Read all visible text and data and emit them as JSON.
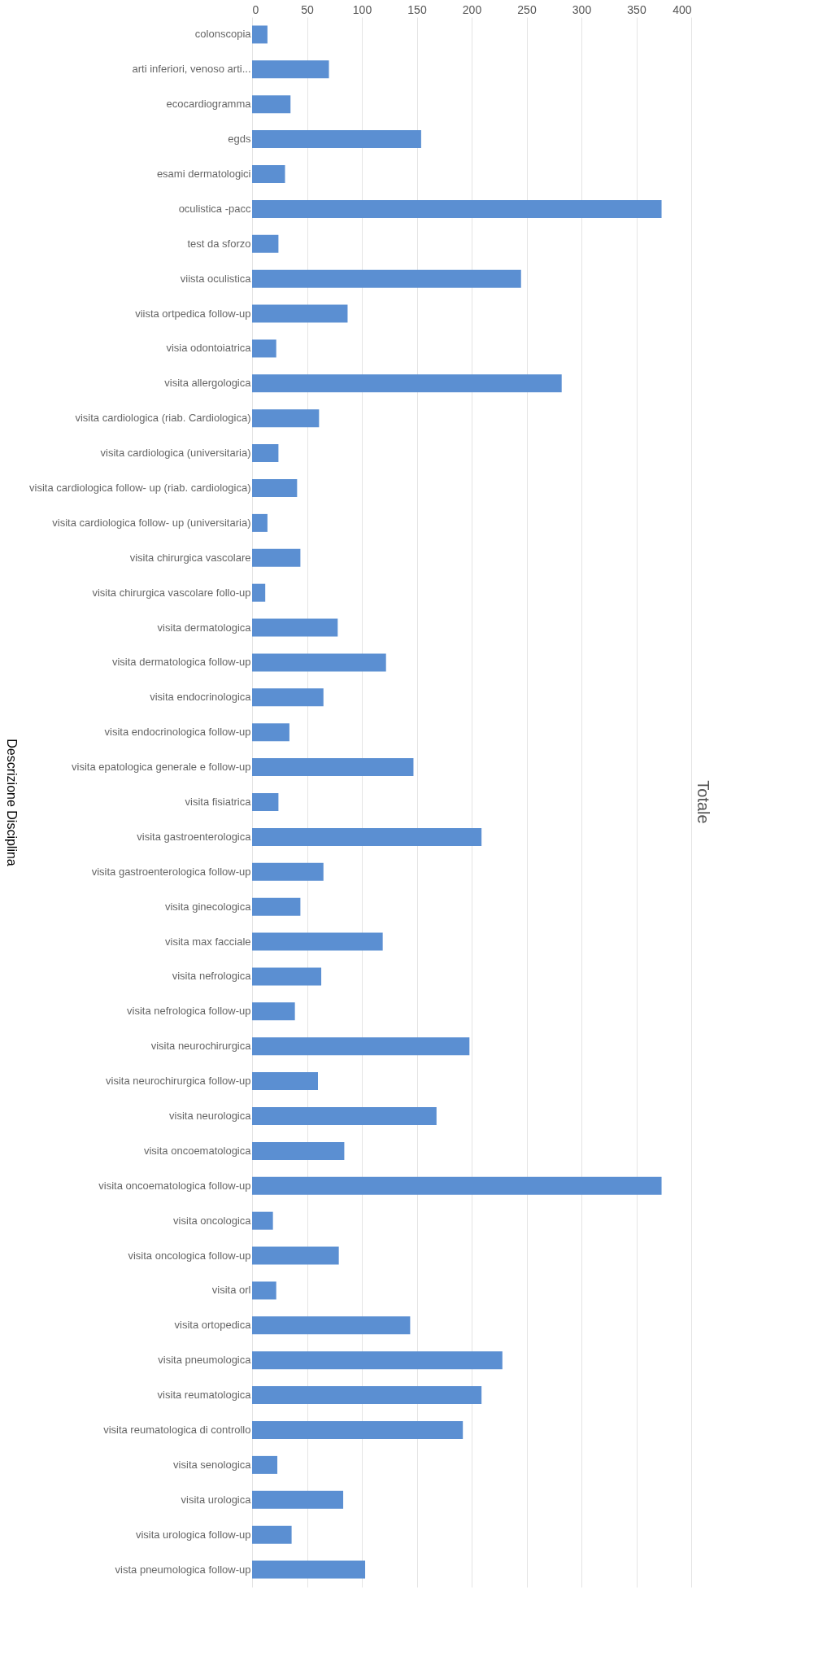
{
  "chart_data": {
    "type": "bar",
    "orientation": "horizontal",
    "title": "Totale",
    "ylabel": "Descrizione Disciplina",
    "categories": [
      "colonscopia",
      "arti inferiori, venoso arti...",
      "ecocardiogramma",
      "egds",
      "esami dermatologici",
      "oculistica -pacc",
      "test da sforzo",
      "viista oculistica",
      "viista ortpedica follow-up",
      "visia odontoiatrica",
      "visita allergologica",
      "visita cardiologica (riab. Cardiologica)",
      "visita cardiologica (universitaria)",
      "visita cardiologica follow- up (riab. cardiologica)",
      "visita cardiologica follow- up (universitaria)",
      "visita chirurgica vascolare",
      "visita chirurgica vascolare follo-up",
      "visita dermatologica",
      "visita dermatologica follow-up",
      "visita endocrinologica",
      "visita endocrinologica follow-up",
      "visita epatologica generale e follow-up",
      "visita fisiatrica",
      "visita gastroenterologica",
      "visita gastroenterologica follow-up",
      "visita ginecologica",
      "visita max facciale",
      "visita nefrologica",
      "visita nefrologica follow-up",
      "visita neurochirurgica",
      "visita neurochirurgica follow-up",
      "visita neurologica",
      "visita oncoematologica",
      "visita oncoematologica follow-up",
      "visita oncologica",
      "visita oncologica follow-up",
      "visita orl",
      "visita ortopedica",
      "visita pneumologica",
      "visita reumatologica",
      "visita reumatologica di controllo",
      "visita senologica",
      "visita urologica",
      "visita urologica follow-up",
      "vista pneumologica follow-up"
    ],
    "series": [
      {
        "color": "#5b8fd2",
        "values": [
          14,
          70,
          35,
          154,
          30,
          373,
          24,
          245,
          87,
          22,
          282,
          61,
          24,
          41,
          14,
          44,
          12,
          78,
          122,
          65,
          34,
          147,
          24,
          209,
          65,
          44,
          119,
          63,
          39,
          198,
          60,
          168,
          84,
          373,
          19,
          79,
          22,
          144,
          228,
          209,
          192,
          23,
          83,
          36,
          103
        ]
      }
    ],
    "xlim": [
      0,
      400
    ],
    "xticks": [
      0,
      50,
      100,
      150,
      200,
      250,
      300,
      350,
      400
    ],
    "grid": "x"
  }
}
